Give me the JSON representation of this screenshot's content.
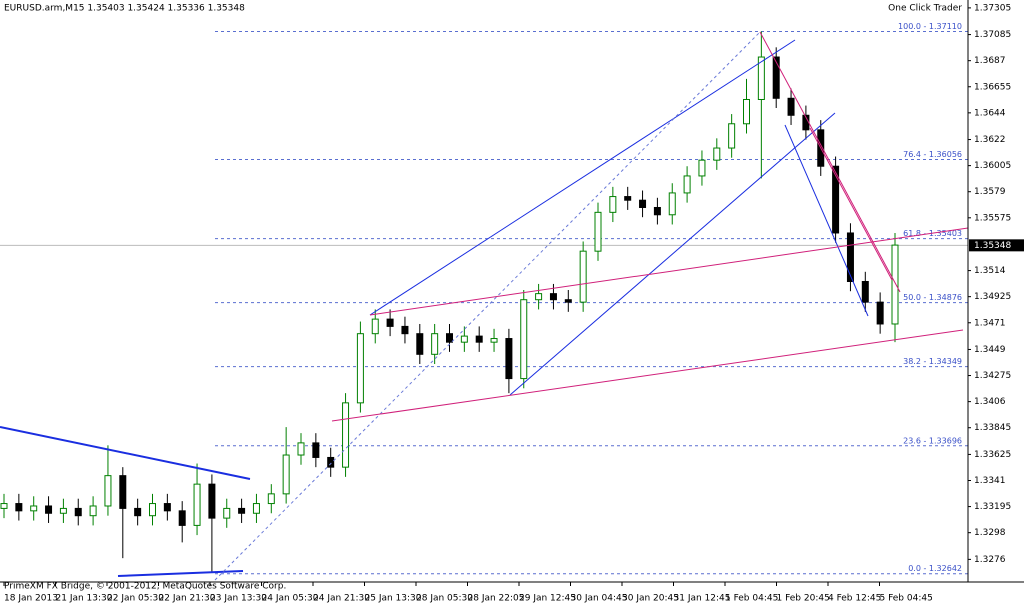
{
  "header": "EURUSD.arm,M15  1.35403 1.35424 1.35336 1.35348",
  "panel_button": "One Click Trader",
  "footer": "PrimeXM FX Bridge, © 2001-2012, MetaQuotes Software Corp.",
  "chart_data": {
    "type": "candlestick",
    "up_color": "#008000",
    "down_color": "#000000",
    "time_labels": [
      "18 Jan 2013",
      "21 Jan 13:30",
      "22 Jan 05:30",
      "22 Jan 21:30",
      "23 Jan 13:30",
      "24 Jan 05:30",
      "24 Jan 21:30",
      "25 Jan 13:30",
      "28 Jan 05:30",
      "28 Jan 22:05",
      "29 Jan 12:45",
      "30 Jan 04:45",
      "30 Jan 20:45",
      "31 Jan 12:45",
      "1 Feb 04:45",
      "1 Feb 20:45",
      "4 Feb 12:45",
      "5 Feb 04:45"
    ],
    "open": [
      1.3318,
      1.3322,
      1.3316,
      1.332,
      1.3314,
      1.3318,
      1.3312,
      1.332,
      1.3345,
      1.3318,
      1.3312,
      1.3322,
      1.3316,
      1.3304,
      1.3338,
      1.331,
      1.3318,
      1.3314,
      1.3322,
      1.333,
      1.3362,
      1.3372,
      1.336,
      1.3352,
      1.3405,
      1.3462,
      1.3474,
      1.3468,
      1.3462,
      1.3445,
      1.3462,
      1.3455,
      1.346,
      1.3455,
      1.3458,
      1.3425,
      1.349,
      1.3495,
      1.349,
      1.3488,
      1.353,
      1.3562,
      1.3575,
      1.3572,
      1.3566,
      1.356,
      1.3578,
      1.3592,
      1.3605,
      1.3615,
      1.3635,
      1.3655,
      1.369,
      1.3656,
      1.3642,
      1.363,
      1.36,
      1.3545,
      1.3505,
      1.3488,
      1.347
    ],
    "high": [
      1.333,
      1.333,
      1.3328,
      1.3328,
      1.3326,
      1.3326,
      1.3328,
      1.337,
      1.3352,
      1.3326,
      1.333,
      1.333,
      1.3324,
      1.3355,
      1.3346,
      1.3326,
      1.3326,
      1.333,
      1.3338,
      1.3385,
      1.338,
      1.338,
      1.3368,
      1.3413,
      1.3472,
      1.3482,
      1.3482,
      1.3476,
      1.347,
      1.347,
      1.347,
      1.3468,
      1.3468,
      1.3466,
      1.3466,
      1.3498,
      1.3503,
      1.3503,
      1.3498,
      1.3538,
      1.357,
      1.3583,
      1.3583,
      1.358,
      1.3574,
      1.3586,
      1.36,
      1.3613,
      1.3623,
      1.3643,
      1.3672,
      1.3711,
      1.3698,
      1.3664,
      1.365,
      1.3638,
      1.3608,
      1.3553,
      1.3513,
      1.3496,
      1.3545
    ],
    "low": [
      1.331,
      1.3308,
      1.3308,
      1.3306,
      1.3306,
      1.3304,
      1.3304,
      1.3312,
      1.3277,
      1.3304,
      1.3304,
      1.3308,
      1.329,
      1.3296,
      1.3266,
      1.3302,
      1.3306,
      1.3306,
      1.3314,
      1.3322,
      1.3354,
      1.3352,
      1.3344,
      1.3344,
      1.3397,
      1.3454,
      1.346,
      1.3454,
      1.3437,
      1.3437,
      1.3447,
      1.3447,
      1.3447,
      1.3447,
      1.3413,
      1.3417,
      1.3482,
      1.3482,
      1.348,
      1.348,
      1.3522,
      1.3554,
      1.3564,
      1.3558,
      1.3552,
      1.3552,
      1.357,
      1.3584,
      1.3597,
      1.3607,
      1.3627,
      1.359,
      1.3648,
      1.3634,
      1.3622,
      1.3592,
      1.3537,
      1.3497,
      1.348,
      1.3462,
      1.3455
    ],
    "close": [
      1.3322,
      1.3316,
      1.332,
      1.3314,
      1.3318,
      1.3312,
      1.332,
      1.3345,
      1.3318,
      1.3312,
      1.3322,
      1.3316,
      1.3304,
      1.3338,
      1.331,
      1.3318,
      1.3314,
      1.3322,
      1.333,
      1.3362,
      1.3372,
      1.336,
      1.3352,
      1.3405,
      1.3462,
      1.3474,
      1.3468,
      1.3462,
      1.3445,
      1.3462,
      1.3455,
      1.346,
      1.3455,
      1.3458,
      1.3425,
      1.349,
      1.3495,
      1.349,
      1.3488,
      1.353,
      1.3562,
      1.3575,
      1.3572,
      1.3566,
      1.356,
      1.3578,
      1.3592,
      1.3605,
      1.3615,
      1.3635,
      1.3655,
      1.369,
      1.3656,
      1.3642,
      1.363,
      1.36,
      1.3545,
      1.3505,
      1.3488,
      1.347,
      1.3535
    ],
    "ylim": [
      1.3259,
      1.3737
    ],
    "yticks": [
      1.37305,
      1.37085,
      1.3687,
      1.36655,
      1.3644,
      1.3622,
      1.36005,
      1.3579,
      1.35575,
      1.3514,
      1.34925,
      1.3471,
      1.3449,
      1.34275,
      1.3406,
      1.33845,
      1.33625,
      1.3341,
      1.33195,
      1.3298,
      1.3276
    ],
    "current_price": 1.35348,
    "fib_color": "#5a6fd0",
    "fib_levels": [
      {
        "value": 1.3711,
        "label": "100.0 - 1.37110"
      },
      {
        "value": 1.36056,
        "label": "76.4 - 1.36056"
      },
      {
        "value": 1.35403,
        "label": "61.8 - 1.35403"
      },
      {
        "value": 1.34876,
        "label": "50.0 - 1.34876"
      },
      {
        "value": 1.34349,
        "label": "38.2 - 1.34349"
      },
      {
        "value": 1.33696,
        "label": "23.6 - 1.33696"
      },
      {
        "value": 1.32642,
        "label": "0.0 - 1.32642"
      }
    ]
  }
}
